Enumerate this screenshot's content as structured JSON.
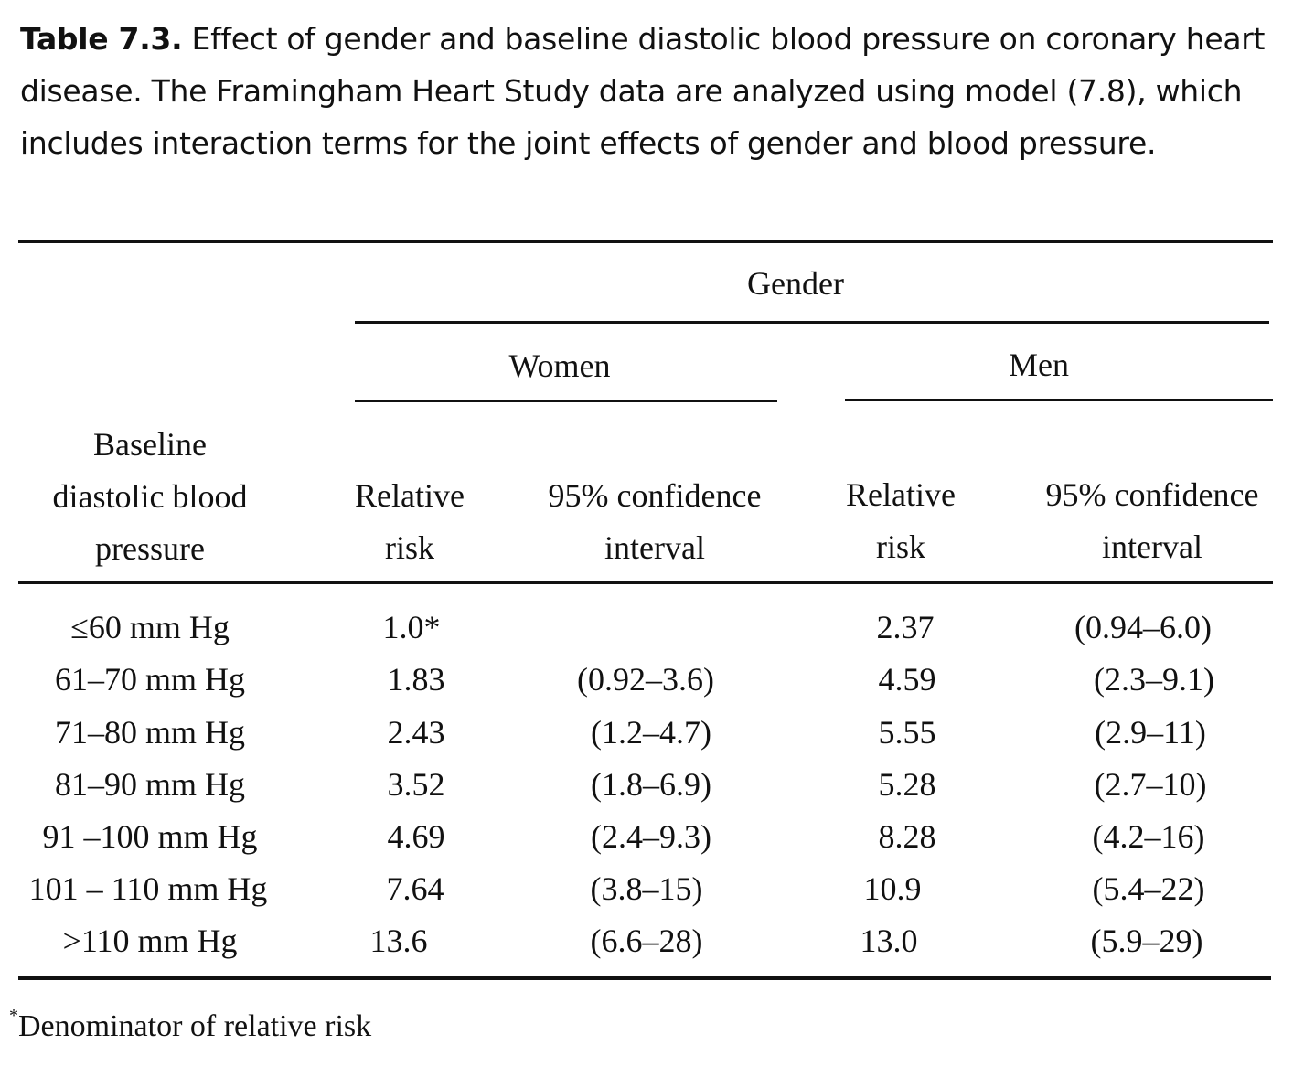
{
  "caption": {
    "label": "Table 7.3.",
    "text": "Effect of gender and baseline diastolic blood pressure on coronary heart disease. The Framingham Heart Study data are analyzed using model (7.8), which includes interaction terms for the joint effects of gender and blood pressure."
  },
  "header": {
    "group": "Gender",
    "women": "Women",
    "men": "Men",
    "row_header": [
      "Baseline",
      "diastolic blood",
      "pressure"
    ],
    "rr": [
      "Relative",
      "risk"
    ],
    "ci": [
      "95% confidence",
      "interval"
    ]
  },
  "rows": [
    {
      "bp": "≤60 mm Hg",
      "w_rr": "1.0*",
      "w_ci": "",
      "m_rr": "2.37",
      "m_ci": "(0.94–6.0)"
    },
    {
      "bp": "61–70 mm Hg",
      "w_rr": "1.83",
      "w_ci": "(0.92–3.6)",
      "m_rr": "4.59",
      "m_ci": "(2.3–9.1)"
    },
    {
      "bp": "71–80 mm Hg",
      "w_rr": "2.43",
      "w_ci": "(1.2–4.7)",
      "m_rr": "5.55",
      "m_ci": "(2.9–11)"
    },
    {
      "bp": "81–90 mm Hg",
      "w_rr": "3.52",
      "w_ci": "(1.8–6.9)",
      "m_rr": "5.28",
      "m_ci": "(2.7–10)"
    },
    {
      "bp": "91 –100 mm Hg",
      "w_rr": "4.69",
      "w_ci": "(2.4–9.3)",
      "m_rr": "8.28",
      "m_ci": "(4.2–16)"
    },
    {
      "bp": "101 – 110 mm Hg",
      "w_rr": "7.64",
      "w_ci": "(3.8–15)",
      "m_rr": "10.9",
      "m_ci": "(5.4–22)"
    },
    {
      "bp": ">110 mm Hg",
      "w_rr": "13.6",
      "w_ci": "(6.6–28)",
      "m_rr": "13.0",
      "m_ci": "(5.9–29)"
    }
  ],
  "footnote": {
    "mark": "*",
    "text": "Denominator of relative risk"
  }
}
